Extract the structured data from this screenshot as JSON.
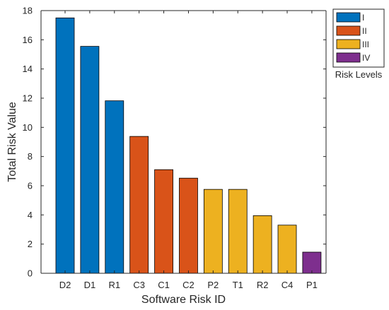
{
  "chart_data": {
    "type": "bar",
    "title": "",
    "xlabel": "Software Risk ID",
    "ylabel": "Total Risk Value",
    "categories": [
      "D2",
      "D1",
      "R1",
      "C3",
      "C1",
      "C2",
      "P2",
      "T1",
      "R2",
      "C4",
      "P1"
    ],
    "values": [
      17.5,
      15.55,
      11.82,
      9.38,
      7.1,
      6.52,
      5.75,
      5.75,
      3.95,
      3.3,
      1.45
    ],
    "risk_levels": [
      "I",
      "I",
      "I",
      "II",
      "II",
      "II",
      "III",
      "III",
      "III",
      "III",
      "IV"
    ],
    "ylim": [
      0,
      18
    ],
    "yticks": [
      0,
      2,
      4,
      6,
      8,
      10,
      12,
      14,
      16,
      18
    ],
    "grid": false,
    "legend": {
      "title": "Risk Levels",
      "placement": "outside-top-right",
      "entries": [
        {
          "label": "I",
          "color": "#0072BD"
        },
        {
          "label": "II",
          "color": "#D95319"
        },
        {
          "label": "III",
          "color": "#EDB120"
        },
        {
          "label": "IV",
          "color": "#7E2F8E"
        }
      ]
    }
  }
}
